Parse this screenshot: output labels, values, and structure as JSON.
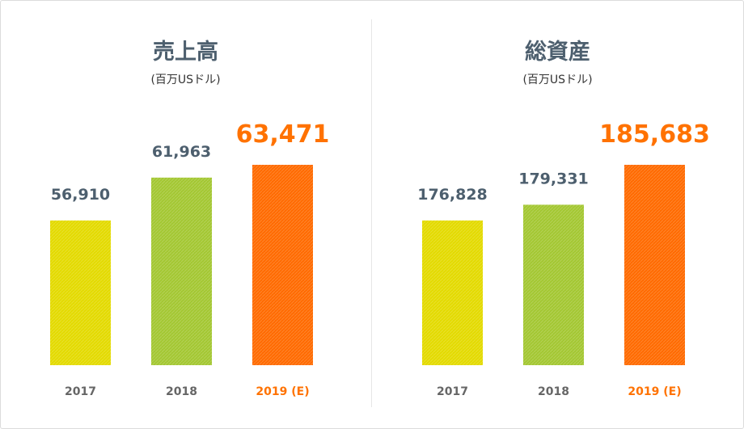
{
  "colors": {
    "bar_2017": "#e3da00",
    "bar_2018": "#a3c732",
    "bar_2019": "#ff6a00",
    "label_default": "#4d5f6e",
    "label_highlight": "#ff7200",
    "year_default": "#666666"
  },
  "chart_data": [
    {
      "type": "bar",
      "title": "売上高",
      "subtitle": "(百万USドル)",
      "categories": [
        "2017",
        "2018",
        "2019 (E)"
      ],
      "values": [
        56910,
        61963,
        63471
      ],
      "value_labels": [
        "56,910",
        "61,963",
        "63,471"
      ],
      "highlight_index": 2,
      "ylim": [
        0,
        63471
      ]
    },
    {
      "type": "bar",
      "title": "総資産",
      "subtitle": "(百万USドル)",
      "categories": [
        "2017",
        "2018",
        "2019 (E)"
      ],
      "values": [
        176828,
        179331,
        185683
      ],
      "value_labels": [
        "176,828",
        "179,331",
        "185,683"
      ],
      "highlight_index": 2,
      "ylim": [
        0,
        185683
      ]
    }
  ]
}
